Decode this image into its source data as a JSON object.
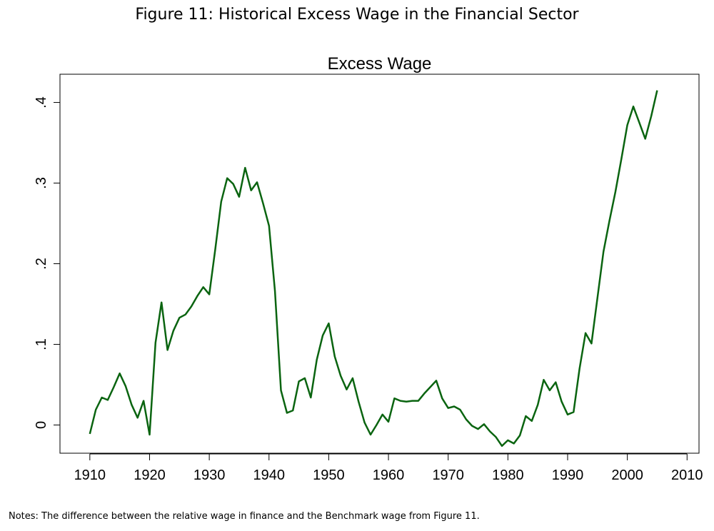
{
  "figure_title": "Figure 11: Historical Excess Wage in the Financial Sector",
  "notes": "Notes: The difference between the relative wage in finance and the Benchmark wage from Figure 11.",
  "chart_data": {
    "type": "line",
    "title": "Excess Wage",
    "xlabel": "",
    "ylabel": "",
    "xlim": [
      1905,
      2012
    ],
    "ylim": [
      -0.035,
      0.435
    ],
    "x_ticks": [
      1910,
      1920,
      1930,
      1940,
      1950,
      1960,
      1970,
      1980,
      1990,
      2000,
      2010
    ],
    "x_tick_labels": [
      "1910",
      "1920",
      "1930",
      "1940",
      "1950",
      "1960",
      "1970",
      "1980",
      "1990",
      "2000",
      "2010"
    ],
    "y_ticks": [
      0,
      0.1,
      0.2,
      0.3,
      0.4
    ],
    "y_tick_labels": [
      "0",
      ".1",
      ".2",
      ".3",
      ".4"
    ],
    "grid": false,
    "line_color": "#0a6410",
    "series": [
      {
        "x": [
          1910,
          1911,
          1912,
          1913,
          1914,
          1915,
          1916,
          1917,
          1918,
          1919,
          1920,
          1921,
          1922,
          1923,
          1924,
          1925,
          1926,
          1927,
          1928,
          1929,
          1930,
          1931,
          1932,
          1933,
          1934,
          1935,
          1936,
          1937,
          1938,
          1939,
          1940,
          1941,
          1942,
          1943,
          1944,
          1945,
          1946,
          1947,
          1948,
          1949,
          1950,
          1951,
          1952,
          1953,
          1954,
          1955,
          1956,
          1957,
          1958,
          1959,
          1960,
          1961,
          1962,
          1963,
          1964,
          1965,
          1966,
          1967,
          1968,
          1969,
          1970,
          1971,
          1972,
          1973,
          1974,
          1975,
          1976,
          1977,
          1978,
          1979,
          1980,
          1981,
          1982,
          1983,
          1984,
          1985,
          1986,
          1987,
          1988,
          1989,
          1990,
          1991,
          1992,
          1993,
          1994,
          1995,
          1996,
          1997,
          1998,
          1999,
          2000,
          2001,
          2002,
          2003,
          2004,
          2005
        ],
        "values": [
          -0.011,
          0.019,
          0.034,
          0.031,
          0.047,
          0.064,
          0.048,
          0.025,
          0.009,
          0.03,
          -0.012,
          0.102,
          0.152,
          0.093,
          0.117,
          0.133,
          0.137,
          0.147,
          0.16,
          0.171,
          0.162,
          0.218,
          0.277,
          0.306,
          0.299,
          0.283,
          0.319,
          0.291,
          0.301,
          0.275,
          0.247,
          0.166,
          0.043,
          0.015,
          0.018,
          0.054,
          0.058,
          0.034,
          0.081,
          0.111,
          0.126,
          0.085,
          0.061,
          0.044,
          0.058,
          0.029,
          0.003,
          -0.012,
          0.0,
          0.013,
          0.004,
          0.033,
          0.03,
          0.029,
          0.03,
          0.03,
          0.039,
          0.047,
          0.055,
          0.033,
          0.021,
          0.023,
          0.019,
          0.007,
          -0.001,
          -0.005,
          0.001,
          -0.008,
          -0.015,
          -0.026,
          -0.019,
          -0.023,
          -0.013,
          0.011,
          0.005,
          0.025,
          0.056,
          0.043,
          0.053,
          0.029,
          0.013,
          0.016,
          0.07,
          0.114,
          0.101,
          0.158,
          0.215,
          0.253,
          0.289,
          0.33,
          0.372,
          0.395,
          0.375,
          0.355,
          0.383,
          0.415
        ]
      }
    ]
  }
}
